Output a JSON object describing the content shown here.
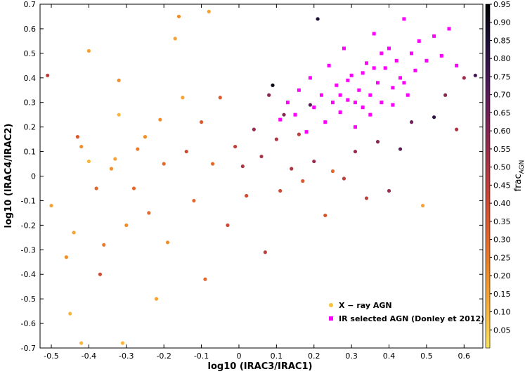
{
  "chart_data": {
    "type": "scatter",
    "xlabel": "log10 (IRAC3/IRAC1)",
    "ylabel": "log10 (IRAC4/IRAC2)",
    "xlim": [
      -0.53,
      0.65
    ],
    "ylim": [
      -0.7,
      0.7
    ],
    "xticks": [
      "-0.5",
      "-0.4",
      "-0.3",
      "-0.2",
      "-0.1",
      "0",
      "0.1",
      "0.2",
      "0.3",
      "0.4",
      "0.5",
      "0.6"
    ],
    "yticks": [
      "-0.7",
      "-0.6",
      "-0.5",
      "-0.4",
      "-0.3",
      "-0.2",
      "-0.1",
      "0",
      "0.1",
      "0.2",
      "0.3",
      "0.4",
      "0.5",
      "0.6",
      "0.7"
    ],
    "colorbar": {
      "label": "frac_AGN",
      "label_main": "frac",
      "label_sub": "AGN",
      "range": [
        0.0,
        0.95
      ],
      "ticks": [
        "0.05",
        "0.10",
        "0.15",
        "0.20",
        "0.25",
        "0.30",
        "0.35",
        "0.40",
        "0.45",
        "0.50",
        "0.55",
        "0.60",
        "0.65",
        "0.70",
        "0.75",
        "0.80",
        "0.85",
        "0.90",
        "0.95"
      ],
      "colors": [
        "#f7e35c",
        "#f9b33a",
        "#ef8a28",
        "#e2622b",
        "#c94436",
        "#a33049",
        "#772157",
        "#4a1858",
        "#1e0f3a",
        "#000000"
      ]
    },
    "legend": {
      "placement": "bottom-right",
      "entries": [
        "X − ray AGN",
        "IR selected AGN (Donley et 2012)"
      ]
    },
    "series": [
      {
        "name": "X − ray AGN",
        "marker": "circle",
        "points": [
          {
            "x": -0.51,
            "y": 0.41,
            "f": 0.45
          },
          {
            "x": -0.5,
            "y": -0.12,
            "f": 0.15
          },
          {
            "x": -0.46,
            "y": -0.33,
            "f": 0.2
          },
          {
            "x": -0.45,
            "y": -0.56,
            "f": 0.1
          },
          {
            "x": -0.44,
            "y": -0.23,
            "f": 0.15
          },
          {
            "x": -0.43,
            "y": 0.16,
            "f": 0.35
          },
          {
            "x": -0.42,
            "y": 0.12,
            "f": 0.2
          },
          {
            "x": -0.42,
            "y": -0.68,
            "f": 0.1
          },
          {
            "x": -0.4,
            "y": 0.51,
            "f": 0.15
          },
          {
            "x": -0.4,
            "y": 0.06,
            "f": 0.1
          },
          {
            "x": -0.38,
            "y": -0.05,
            "f": 0.3
          },
          {
            "x": -0.37,
            "y": -0.4,
            "f": 0.4
          },
          {
            "x": -0.36,
            "y": -0.28,
            "f": 0.25
          },
          {
            "x": -0.34,
            "y": 0.03,
            "f": 0.2
          },
          {
            "x": -0.33,
            "y": 0.07,
            "f": 0.15
          },
          {
            "x": -0.32,
            "y": 0.39,
            "f": 0.2
          },
          {
            "x": -0.32,
            "y": 0.25,
            "f": 0.1
          },
          {
            "x": -0.31,
            "y": -0.68,
            "f": 0.1
          },
          {
            "x": -0.3,
            "y": -0.2,
            "f": 0.2
          },
          {
            "x": -0.28,
            "y": -0.05,
            "f": 0.3
          },
          {
            "x": -0.27,
            "y": 0.11,
            "f": 0.25
          },
          {
            "x": -0.25,
            "y": 0.16,
            "f": 0.2
          },
          {
            "x": -0.24,
            "y": -0.15,
            "f": 0.3
          },
          {
            "x": -0.22,
            "y": -0.5,
            "f": 0.15
          },
          {
            "x": -0.21,
            "y": 0.23,
            "f": 0.2
          },
          {
            "x": -0.2,
            "y": 0.05,
            "f": 0.3
          },
          {
            "x": -0.19,
            "y": -0.27,
            "f": 0.2
          },
          {
            "x": -0.17,
            "y": 0.56,
            "f": 0.15
          },
          {
            "x": -0.16,
            "y": 0.65,
            "f": 0.2
          },
          {
            "x": -0.15,
            "y": 0.32,
            "f": 0.15
          },
          {
            "x": -0.14,
            "y": 0.1,
            "f": 0.4
          },
          {
            "x": -0.12,
            "y": -0.1,
            "f": 0.3
          },
          {
            "x": -0.1,
            "y": 0.22,
            "f": 0.35
          },
          {
            "x": -0.09,
            "y": -0.42,
            "f": 0.3
          },
          {
            "x": -0.08,
            "y": 0.67,
            "f": 0.15
          },
          {
            "x": -0.07,
            "y": 0.05,
            "f": 0.3
          },
          {
            "x": -0.05,
            "y": 0.32,
            "f": 0.35
          },
          {
            "x": -0.03,
            "y": -0.2,
            "f": 0.4
          },
          {
            "x": -0.01,
            "y": 0.12,
            "f": 0.45
          },
          {
            "x": 0.01,
            "y": 0.04,
            "f": 0.5
          },
          {
            "x": 0.02,
            "y": -0.08,
            "f": 0.4
          },
          {
            "x": 0.04,
            "y": 0.19,
            "f": 0.55
          },
          {
            "x": 0.06,
            "y": 0.08,
            "f": 0.5
          },
          {
            "x": 0.07,
            "y": -0.31,
            "f": 0.45
          },
          {
            "x": 0.08,
            "y": 0.33,
            "f": 0.6
          },
          {
            "x": 0.09,
            "y": 0.37,
            "f": 0.9
          },
          {
            "x": 0.1,
            "y": 0.15,
            "f": 0.5
          },
          {
            "x": 0.11,
            "y": -0.06,
            "f": 0.4
          },
          {
            "x": 0.12,
            "y": 0.25,
            "f": 0.6
          },
          {
            "x": 0.14,
            "y": 0.03,
            "f": 0.5
          },
          {
            "x": 0.16,
            "y": 0.17,
            "f": 0.45
          },
          {
            "x": 0.17,
            "y": -0.02,
            "f": 0.35
          },
          {
            "x": 0.19,
            "y": 0.29,
            "f": 0.7
          },
          {
            "x": 0.2,
            "y": 0.06,
            "f": 0.55
          },
          {
            "x": 0.21,
            "y": 0.64,
            "f": 0.85
          },
          {
            "x": 0.23,
            "y": -0.16,
            "f": 0.35
          },
          {
            "x": 0.25,
            "y": 0.02,
            "f": 0.3
          },
          {
            "x": 0.28,
            "y": -0.01,
            "f": 0.45
          },
          {
            "x": 0.31,
            "y": 0.1,
            "f": 0.55
          },
          {
            "x": 0.34,
            "y": -0.09,
            "f": 0.45
          },
          {
            "x": 0.37,
            "y": 0.14,
            "f": 0.6
          },
          {
            "x": 0.4,
            "y": -0.06,
            "f": 0.55
          },
          {
            "x": 0.43,
            "y": 0.11,
            "f": 0.7
          },
          {
            "x": 0.46,
            "y": 0.22,
            "f": 0.65
          },
          {
            "x": 0.49,
            "y": -0.12,
            "f": 0.15
          },
          {
            "x": 0.52,
            "y": 0.24,
            "f": 0.8
          },
          {
            "x": 0.55,
            "y": 0.33,
            "f": 0.6
          },
          {
            "x": 0.58,
            "y": 0.19,
            "f": 0.5
          },
          {
            "x": 0.6,
            "y": 0.4,
            "f": 0.55
          },
          {
            "x": 0.63,
            "y": 0.41,
            "f": 0.75
          }
        ]
      },
      {
        "name": "IR selected AGN (Donley et 2012)",
        "marker": "square",
        "color": "#ff00ff",
        "points": [
          {
            "x": 0.11,
            "y": 0.23
          },
          {
            "x": 0.13,
            "y": 0.3
          },
          {
            "x": 0.15,
            "y": 0.25
          },
          {
            "x": 0.16,
            "y": 0.35
          },
          {
            "x": 0.18,
            "y": 0.18
          },
          {
            "x": 0.19,
            "y": 0.4
          },
          {
            "x": 0.2,
            "y": 0.28
          },
          {
            "x": 0.22,
            "y": 0.33
          },
          {
            "x": 0.23,
            "y": 0.22
          },
          {
            "x": 0.24,
            "y": 0.45
          },
          {
            "x": 0.25,
            "y": 0.3
          },
          {
            "x": 0.26,
            "y": 0.37
          },
          {
            "x": 0.27,
            "y": 0.26
          },
          {
            "x": 0.28,
            "y": 0.52
          },
          {
            "x": 0.29,
            "y": 0.31
          },
          {
            "x": 0.3,
            "y": 0.41
          },
          {
            "x": 0.31,
            "y": 0.2
          },
          {
            "x": 0.32,
            "y": 0.35
          },
          {
            "x": 0.33,
            "y": 0.28
          },
          {
            "x": 0.34,
            "y": 0.46
          },
          {
            "x": 0.35,
            "y": 0.33
          },
          {
            "x": 0.36,
            "y": 0.58
          },
          {
            "x": 0.37,
            "y": 0.38
          },
          {
            "x": 0.38,
            "y": 0.3
          },
          {
            "x": 0.39,
            "y": 0.44
          },
          {
            "x": 0.4,
            "y": 0.52
          },
          {
            "x": 0.41,
            "y": 0.36
          },
          {
            "x": 0.42,
            "y": 0.47
          },
          {
            "x": 0.43,
            "y": 0.4
          },
          {
            "x": 0.44,
            "y": 0.64
          },
          {
            "x": 0.45,
            "y": 0.33
          },
          {
            "x": 0.46,
            "y": 0.5
          },
          {
            "x": 0.47,
            "y": 0.43
          },
          {
            "x": 0.48,
            "y": 0.55
          },
          {
            "x": 0.5,
            "y": 0.47
          },
          {
            "x": 0.52,
            "y": 0.57
          },
          {
            "x": 0.54,
            "y": 0.49
          },
          {
            "x": 0.56,
            "y": 0.6
          },
          {
            "x": 0.58,
            "y": 0.45
          },
          {
            "x": 0.35,
            "y": 0.25
          },
          {
            "x": 0.29,
            "y": 0.39
          },
          {
            "x": 0.41,
            "y": 0.29
          },
          {
            "x": 0.33,
            "y": 0.42
          },
          {
            "x": 0.27,
            "y": 0.33
          },
          {
            "x": 0.38,
            "y": 0.5
          },
          {
            "x": 0.31,
            "y": 0.3
          },
          {
            "x": 0.44,
            "y": 0.38
          },
          {
            "x": 0.36,
            "y": 0.44
          }
        ]
      }
    ]
  }
}
